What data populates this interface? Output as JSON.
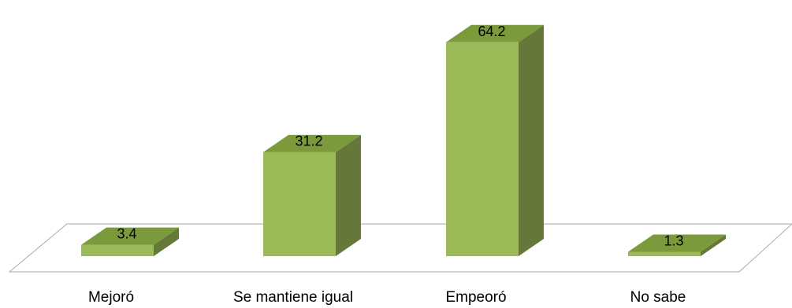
{
  "chart_data": {
    "type": "bar",
    "style": "3d-column",
    "title": "",
    "xlabel": "",
    "ylabel": "",
    "categories": [
      "Mejoró",
      "Se mantiene igual",
      "Empeoró",
      "No sabe"
    ],
    "values": [
      3.4,
      31.2,
      64.2,
      1.3
    ],
    "value_labels": [
      "3.4",
      "31.2",
      "64.2",
      "1.3"
    ],
    "ylim": [
      0,
      70
    ],
    "grid": false,
    "legend": "none",
    "colors": {
      "bar_front": "#9bbb59",
      "bar_top": "#7a9a3c",
      "bar_side": "#66773a",
      "floor_stroke": "#aaaaaa"
    }
  }
}
